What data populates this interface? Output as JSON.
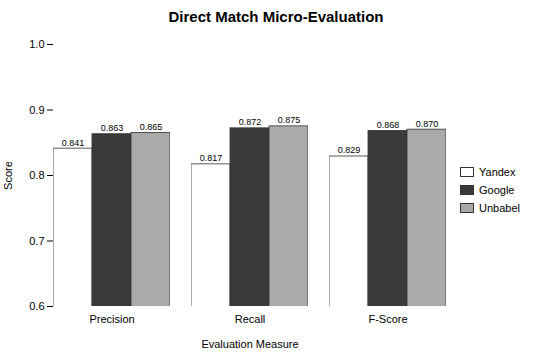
{
  "chart_data": {
    "type": "bar",
    "title": "Direct Match Micro-Evaluation",
    "xlabel": "Evaluation Measure",
    "ylabel": "Score",
    "categories": [
      "Precision",
      "Recall",
      "F-Score"
    ],
    "series": [
      {
        "name": "Yandex",
        "color": "#ffffff",
        "values": [
          0.841,
          0.817,
          0.829
        ],
        "value_labels": [
          "0.841",
          "0.817",
          "0.829"
        ]
      },
      {
        "name": "Google",
        "color": "#3a3a3a",
        "values": [
          0.863,
          0.872,
          0.868
        ],
        "value_labels": [
          "0.863",
          "0.872",
          "0.868"
        ]
      },
      {
        "name": "Unbabel",
        "color": "#aaaaaa",
        "values": [
          0.865,
          0.875,
          0.87
        ],
        "value_labels": [
          "0.865",
          "0.875",
          "0.870"
        ]
      }
    ],
    "ylim": [
      0.6,
      1.0
    ],
    "yticks": [
      0.6,
      0.7,
      0.8,
      0.9,
      {
        "value": 1.0,
        "label": "1.0"
      }
    ],
    "grid": false,
    "legend": "right",
    "data_labels": true
  }
}
